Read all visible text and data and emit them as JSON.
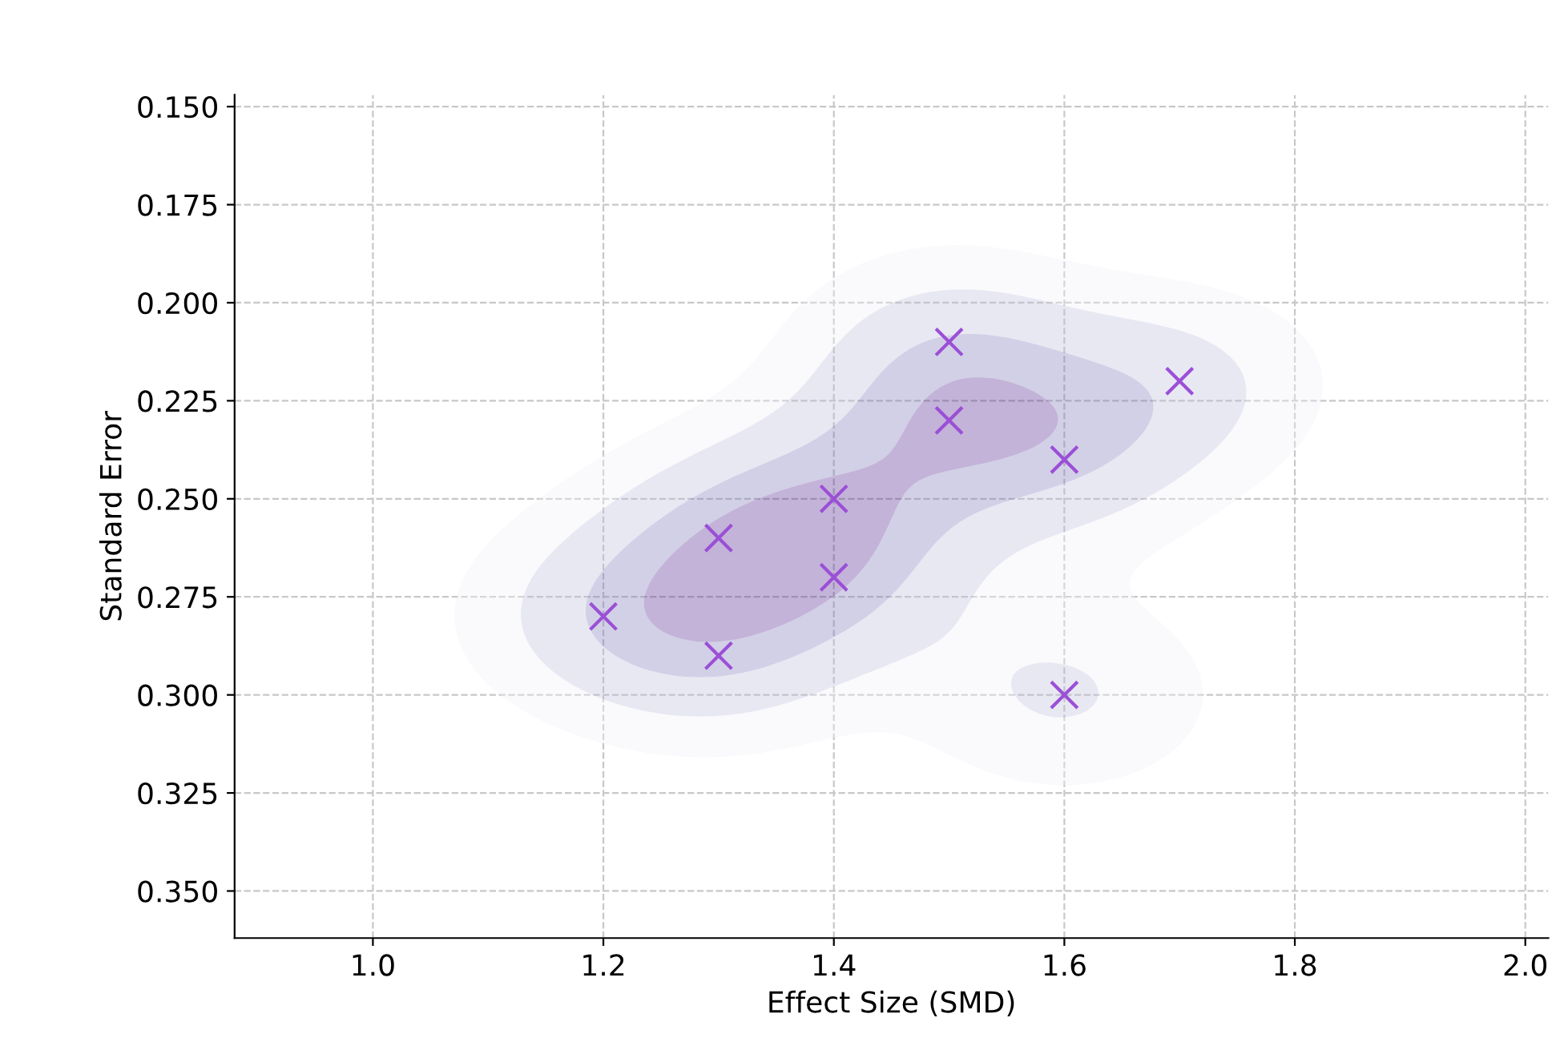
{
  "chart_data": {
    "type": "scatter",
    "xlabel": "Effect Size (SMD)",
    "ylabel": "Standard Error",
    "x": [
      1.5,
      1.7,
      1.5,
      1.6,
      1.4,
      1.3,
      1.4,
      1.2,
      1.3,
      1.6
    ],
    "series": [
      {
        "color": "#9b4fd6",
        "values": [
          0.21,
          0.22,
          0.23,
          0.24,
          0.25,
          0.26,
          0.27,
          0.28,
          0.29,
          0.3
        ]
      }
    ],
    "xlim": [
      0.88,
      2.02
    ],
    "xticks": [
      {
        "value": 1.0,
        "label": "1.0"
      },
      {
        "value": 1.2,
        "label": "1.2"
      },
      {
        "value": 1.4,
        "label": "1.4"
      },
      {
        "value": 1.6,
        "label": "1.6"
      },
      {
        "value": 1.8,
        "label": "1.8"
      },
      {
        "value": 2.0,
        "label": "2.0"
      }
    ],
    "ylim": [
      0.362,
      0.147
    ],
    "yticks": [
      {
        "value": 0.15,
        "label": "0.150"
      },
      {
        "value": 0.175,
        "label": "0.175"
      },
      {
        "value": 0.2,
        "label": "0.200"
      },
      {
        "value": 0.225,
        "label": "0.225"
      },
      {
        "value": 0.25,
        "label": "0.250"
      },
      {
        "value": 0.275,
        "label": "0.275"
      },
      {
        "value": 0.3,
        "label": "0.300"
      },
      {
        "value": 0.325,
        "label": "0.325"
      },
      {
        "value": 0.35,
        "label": "0.350"
      }
    ],
    "grid": true,
    "marker": "cross"
  }
}
